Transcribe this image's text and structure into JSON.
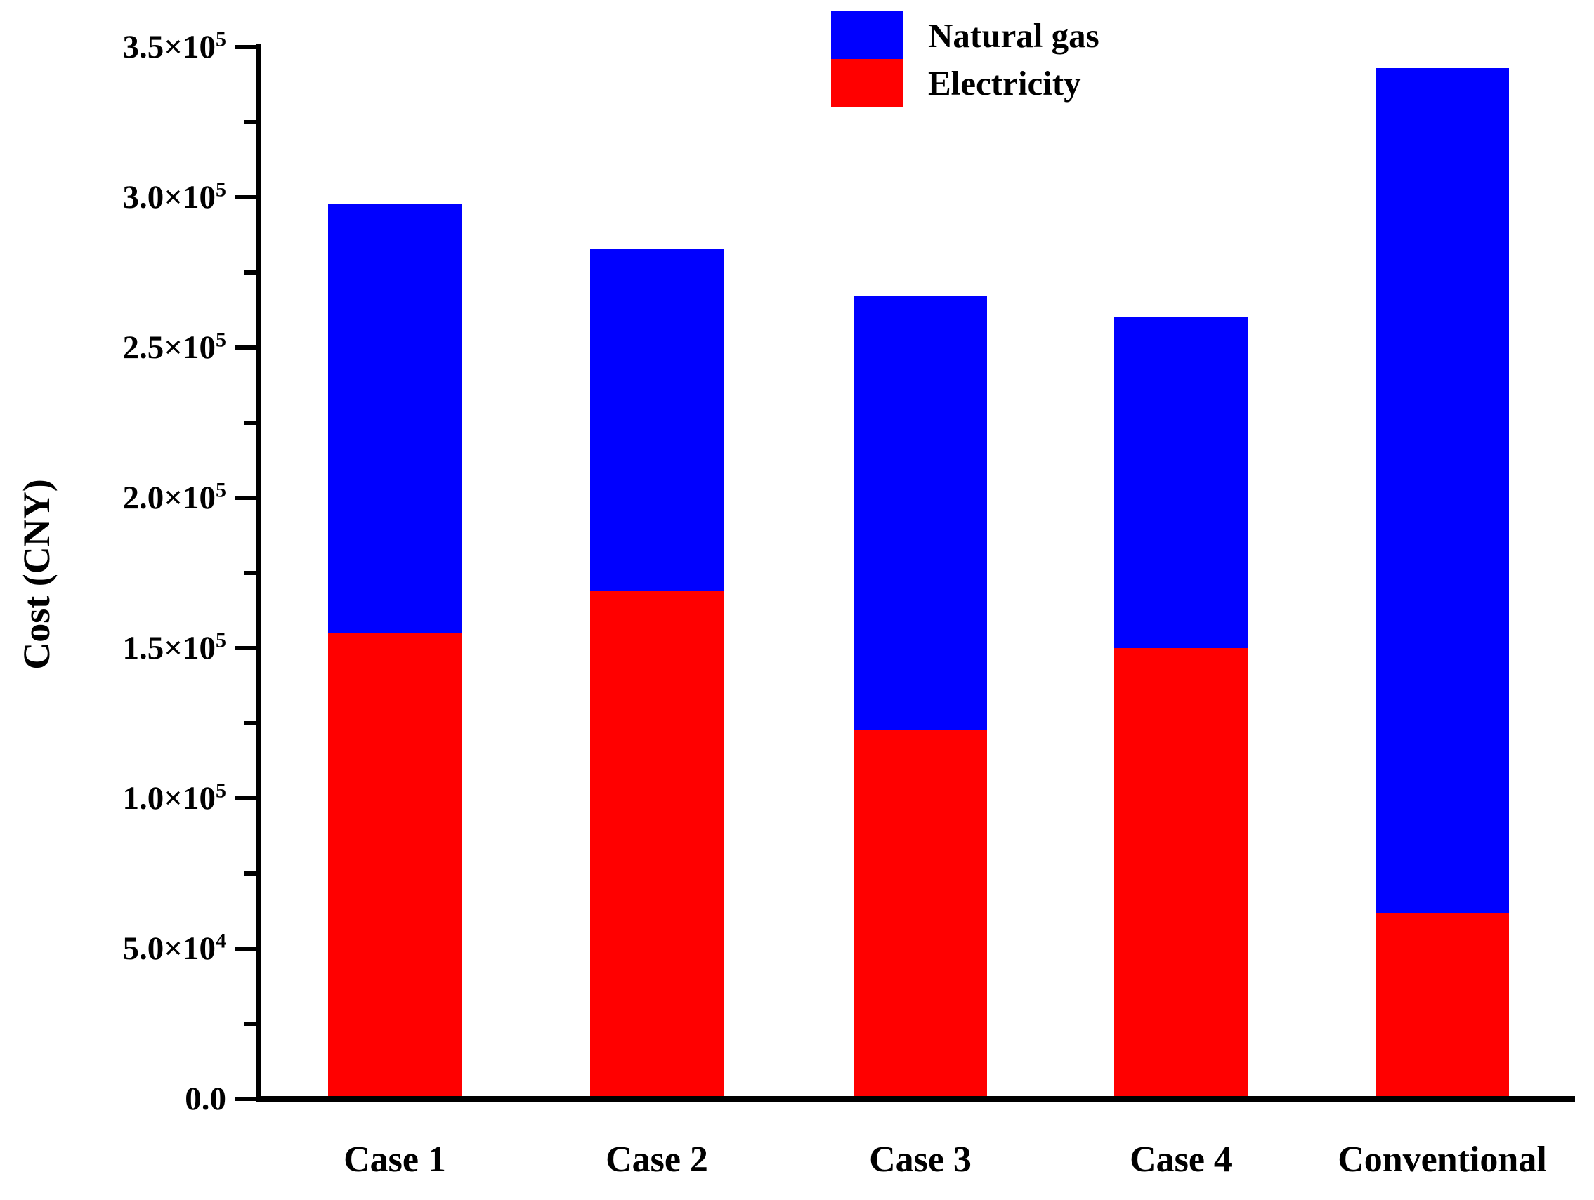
{
  "chart_data": {
    "type": "bar",
    "stacked": true,
    "title": "",
    "xlabel": "",
    "ylabel": "Cost (CNY)",
    "categories": [
      "Case 1",
      "Case 2",
      "Case 3",
      "Case 4",
      "Conventional"
    ],
    "series": [
      {
        "name": "Electricity",
        "color": "#ff0000",
        "values": [
          155000,
          169000,
          123000,
          150000,
          62000
        ]
      },
      {
        "name": "Natural gas",
        "color": "#0000ff",
        "values": [
          143000,
          114000,
          144000,
          110000,
          281000
        ]
      }
    ],
    "stack_totals": [
      298000,
      283000,
      267000,
      260000,
      343000
    ],
    "ylim": [
      0,
      350000
    ],
    "y_major_step": 50000,
    "y_minor_step": 25000,
    "yticks": [
      {
        "value": 350000,
        "mantissa": "3.5×10",
        "exponent": "5"
      },
      {
        "value": 300000,
        "mantissa": "3.0×10",
        "exponent": "5"
      },
      {
        "value": 250000,
        "mantissa": "2.5×10",
        "exponent": "5"
      },
      {
        "value": 200000,
        "mantissa": "2.0×10",
        "exponent": "5"
      },
      {
        "value": 150000,
        "mantissa": "1.5×10",
        "exponent": "5"
      },
      {
        "value": 100000,
        "mantissa": "1.0×10",
        "exponent": "5"
      },
      {
        "value": 50000,
        "mantissa": "5.0×10",
        "exponent": "4"
      },
      {
        "value": 0,
        "mantissa": "0.0",
        "exponent": ""
      }
    ],
    "grid": false,
    "legend": {
      "position": "top-center",
      "entries": [
        {
          "label": "Natural gas",
          "color": "#0000ff"
        },
        {
          "label": "Electricity",
          "color": "#ff0000"
        }
      ]
    },
    "axis_color": "#000000",
    "text_color": "#000000"
  }
}
